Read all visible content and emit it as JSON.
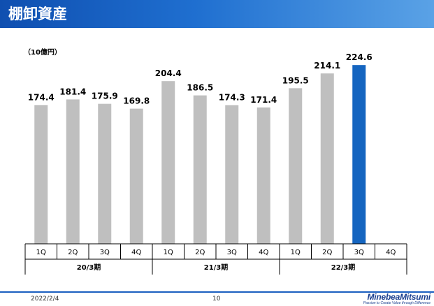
{
  "header": {
    "title": "棚卸資産"
  },
  "chart_data": {
    "type": "bar",
    "unit_label": "（10億円）",
    "categories": [
      "1Q",
      "2Q",
      "3Q",
      "4Q",
      "1Q",
      "2Q",
      "3Q",
      "4Q",
      "1Q",
      "2Q",
      "3Q",
      "4Q"
    ],
    "groups": [
      {
        "label": "20/3期",
        "categories": [
          "1Q",
          "2Q",
          "3Q",
          "4Q"
        ]
      },
      {
        "label": "21/3期",
        "categories": [
          "1Q",
          "2Q",
          "3Q",
          "4Q"
        ]
      },
      {
        "label": "22/3期",
        "categories": [
          "1Q",
          "2Q",
          "3Q",
          "4Q"
        ]
      }
    ],
    "values": [
      174.4,
      181.4,
      175.9,
      169.8,
      204.4,
      186.5,
      174.3,
      171.4,
      195.5,
      214.1,
      224.6,
      null
    ],
    "value_labels": [
      "174.4",
      "181.4",
      "175.9",
      "169.8",
      "204.4",
      "186.5",
      "174.3",
      "171.4",
      "195.5",
      "214.1",
      "224.6",
      ""
    ],
    "highlight_index": 10,
    "ylim": [
      0,
      230
    ],
    "grid": false,
    "colors": {
      "bar": "#bfbfbf",
      "highlight": "#1565c0"
    }
  },
  "footer": {
    "date": "2022/2/4",
    "page": "10",
    "logo": "MinebeaMitsumi",
    "tagline": "Passion to Create Value through Difference"
  }
}
